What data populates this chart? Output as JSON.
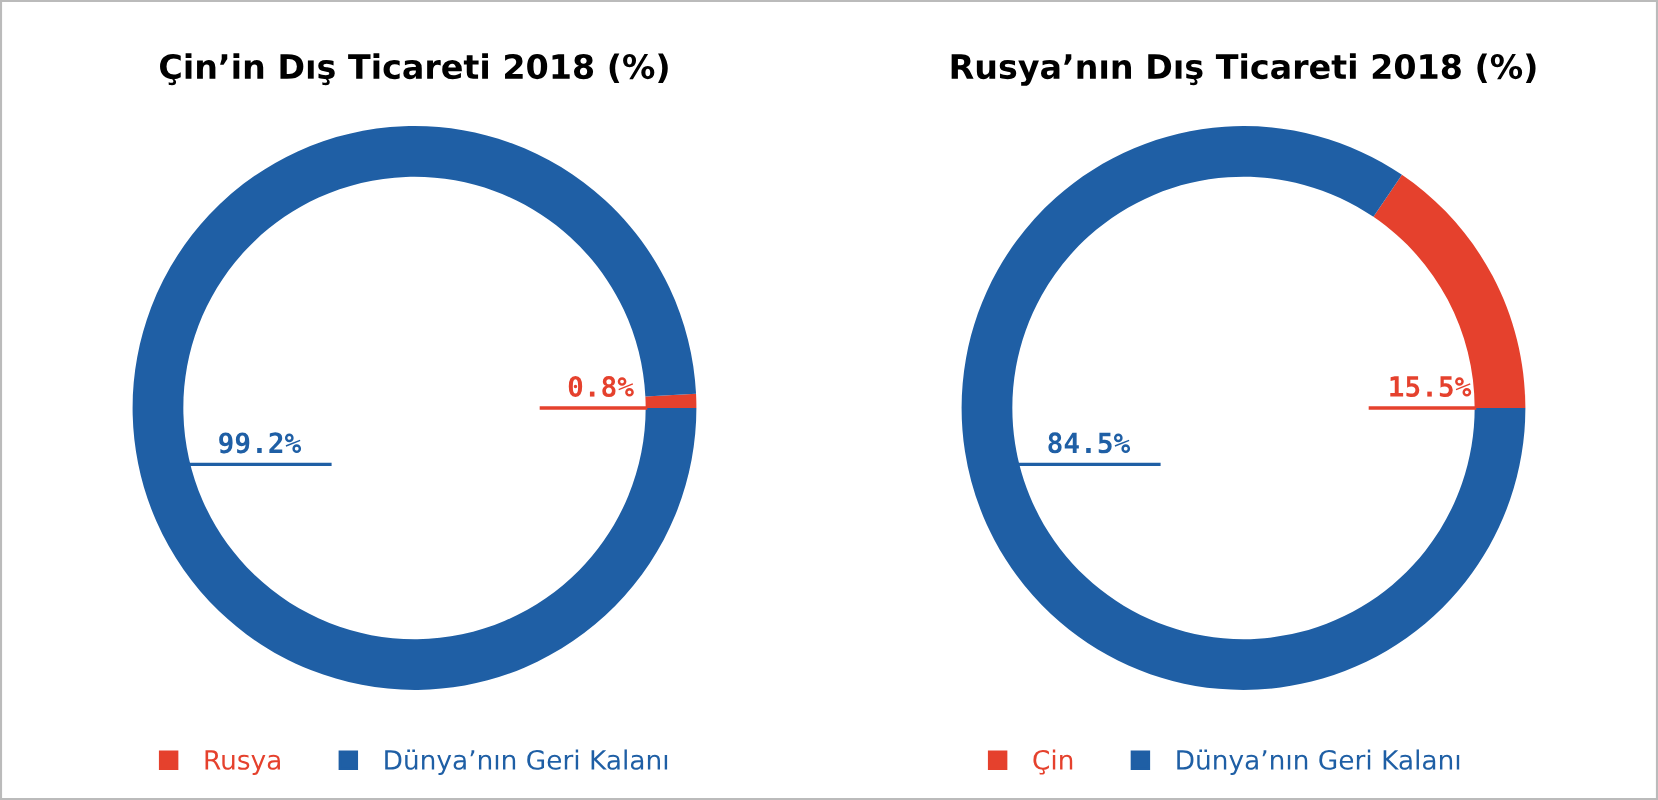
{
  "chart_data": [
    {
      "type": "donut",
      "title": "Çin’in Dış Ticareti 2018 (%)",
      "categories": [
        "Rusya",
        "Dünya’nın Geri Kalanı"
      ],
      "values": [
        0.8,
        99.2
      ],
      "colors": [
        "#e5412d",
        "#1f5fa5"
      ],
      "value_labels": [
        "0.8%",
        "99.2%"
      ],
      "legend": "bottom"
    },
    {
      "type": "donut",
      "title": "Rusya’nın Dış Ticareti 2018 (%)",
      "categories": [
        "Çin",
        "Dünya’nın Geri Kalanı"
      ],
      "values": [
        15.5,
        84.5
      ],
      "colors": [
        "#e5412d",
        "#1f5fa5"
      ],
      "value_labels": [
        "15.5%",
        "84.5%"
      ],
      "legend": "bottom"
    }
  ]
}
